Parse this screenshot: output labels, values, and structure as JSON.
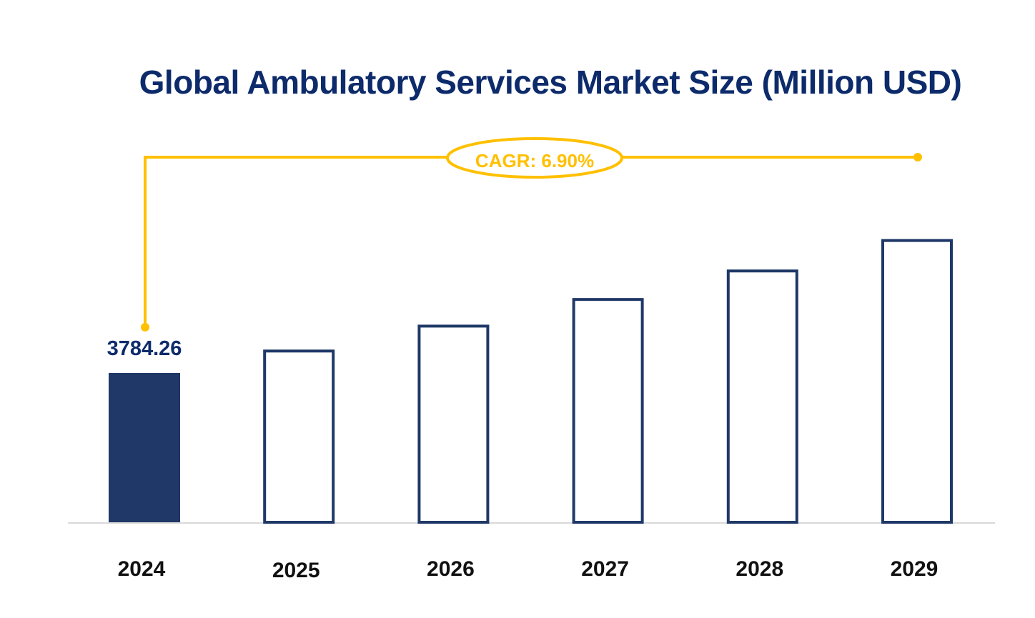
{
  "chart_data": {
    "type": "bar",
    "title": "Global Ambulatory Services Market Size (Million USD)",
    "categories": [
      "2024",
      "2025",
      "2026",
      "2027",
      "2028",
      "2029"
    ],
    "values": [
      3784.26,
      4045.37,
      4324.5,
      4622.89,
      4941.86,
      5282.85
    ],
    "data_labels": [
      "3784.26",
      "",
      "",
      "",
      "",
      ""
    ],
    "annotation": "CAGR: 6.90%",
    "xlabel": "",
    "ylabel": "",
    "grid": false,
    "legend": "none",
    "colors": {
      "bar_fill_highlight": "#1f3868",
      "bar_outline": "#1f3868",
      "annotation": "#ffc000",
      "title": "#0d2b6b",
      "baseline": "#d9d9d9"
    }
  }
}
